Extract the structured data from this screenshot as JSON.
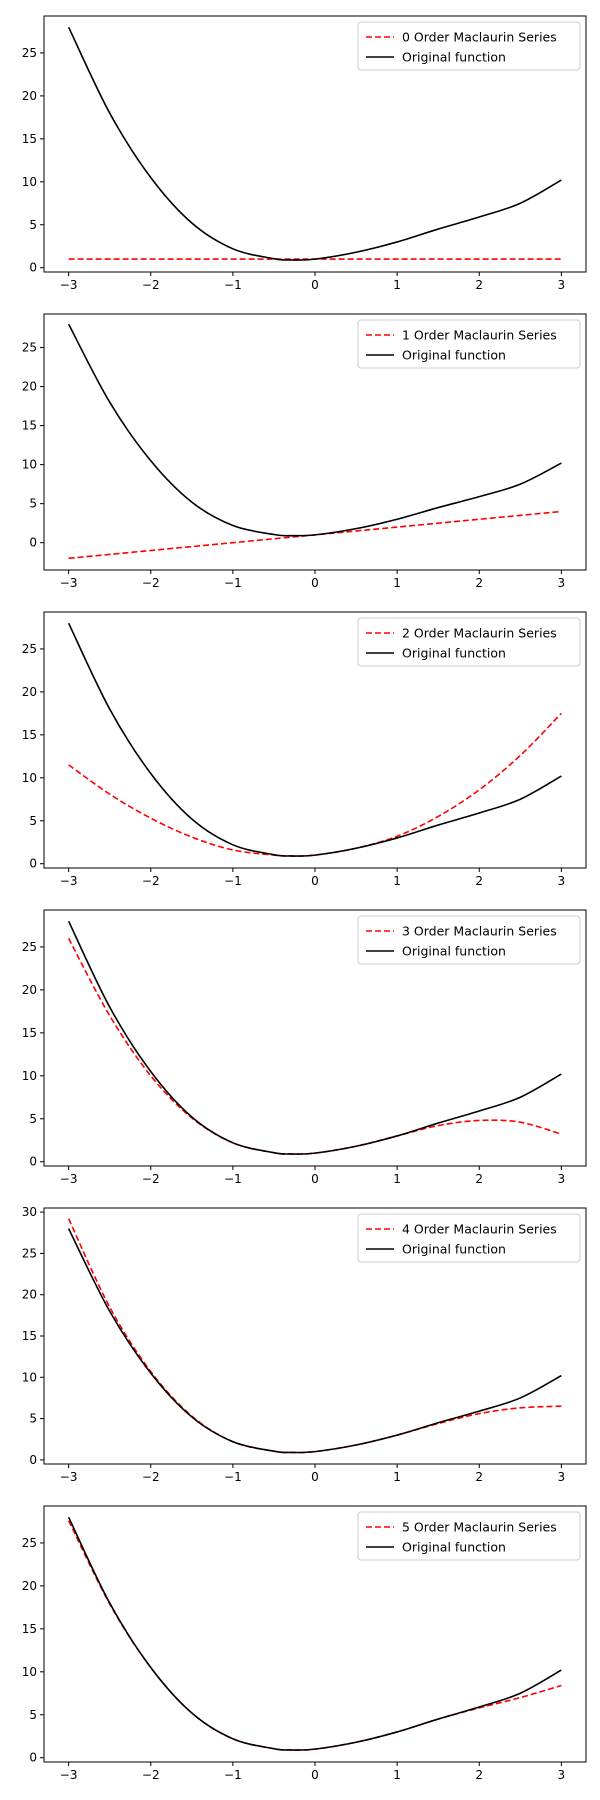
{
  "chart_data": [
    {
      "type": "line",
      "xlim": [
        -3.3,
        3.3
      ],
      "ylim": [
        -0.5,
        29.3
      ],
      "xticks": [
        -3,
        -2,
        -1,
        0,
        1,
        2,
        3
      ],
      "xtick_labels": [
        "−3",
        "−2",
        "−1",
        "0",
        "1",
        "2",
        "3"
      ],
      "yticks": [
        0,
        5,
        10,
        15,
        20,
        25
      ],
      "ytick_labels": [
        "0",
        "5",
        "10",
        "15",
        "20",
        "25"
      ],
      "legend_position": "upper right",
      "series": [
        {
          "name": "0 Order Maclaurin Series",
          "color": "#ff0000",
          "style": "dashed",
          "x": [
            -3,
            3
          ],
          "y": [
            1.0,
            1.0
          ]
        },
        {
          "name": "Original function",
          "color": "#000000",
          "style": "solid",
          "x": [
            -3,
            -2.5,
            -2,
            -1.5,
            -1,
            -0.5,
            -0.3,
            0,
            0.5,
            1,
            1.5,
            2,
            2.5,
            3
          ],
          "y": [
            28.0,
            18.0,
            10.5,
            5.2,
            2.2,
            1.05,
            0.9,
            1.0,
            1.8,
            3.0,
            4.5,
            5.9,
            7.5,
            10.2
          ]
        }
      ]
    },
    {
      "type": "line",
      "xlim": [
        -3.3,
        3.3
      ],
      "ylim": [
        -3.5,
        29.3
      ],
      "xticks": [
        -3,
        -2,
        -1,
        0,
        1,
        2,
        3
      ],
      "xtick_labels": [
        "−3",
        "−2",
        "−1",
        "0",
        "1",
        "2",
        "3"
      ],
      "yticks": [
        0,
        5,
        10,
        15,
        20,
        25
      ],
      "ytick_labels": [
        "0",
        "5",
        "10",
        "15",
        "20",
        "25"
      ],
      "legend_position": "upper right",
      "series": [
        {
          "name": "1 Order Maclaurin Series",
          "color": "#ff0000",
          "style": "dashed",
          "x": [
            -3,
            3
          ],
          "y": [
            -2.0,
            4.0
          ]
        },
        {
          "name": "Original function",
          "color": "#000000",
          "style": "solid",
          "x": [
            -3,
            -2.5,
            -2,
            -1.5,
            -1,
            -0.5,
            -0.3,
            0,
            0.5,
            1,
            1.5,
            2,
            2.5,
            3
          ],
          "y": [
            28.0,
            18.0,
            10.5,
            5.2,
            2.2,
            1.05,
            0.9,
            1.0,
            1.8,
            3.0,
            4.5,
            5.9,
            7.5,
            10.2
          ]
        }
      ]
    },
    {
      "type": "line",
      "xlim": [
        -3.3,
        3.3
      ],
      "ylim": [
        -0.5,
        29.3
      ],
      "xticks": [
        -3,
        -2,
        -1,
        0,
        1,
        2,
        3
      ],
      "xtick_labels": [
        "−3",
        "−2",
        "−1",
        "0",
        "1",
        "2",
        "3"
      ],
      "yticks": [
        0,
        5,
        10,
        15,
        20,
        25
      ],
      "ytick_labels": [
        "0",
        "5",
        "10",
        "15",
        "20",
        "25"
      ],
      "legend_position": "upper right",
      "series": [
        {
          "name": "2 Order Maclaurin Series",
          "color": "#ff0000",
          "style": "dashed",
          "x": [
            -3,
            -2.5,
            -2,
            -1.5,
            -1,
            -0.5,
            -0.3,
            0,
            0.5,
            1,
            1.5,
            2,
            2.5,
            3
          ],
          "y": [
            11.5,
            8.1,
            5.3,
            3.1,
            1.6,
            1.0,
            0.9,
            1.0,
            1.8,
            3.2,
            5.5,
            8.6,
            12.6,
            17.5
          ]
        },
        {
          "name": "Original function",
          "color": "#000000",
          "style": "solid",
          "x": [
            -3,
            -2.5,
            -2,
            -1.5,
            -1,
            -0.5,
            -0.3,
            0,
            0.5,
            1,
            1.5,
            2,
            2.5,
            3
          ],
          "y": [
            28.0,
            18.0,
            10.5,
            5.2,
            2.2,
            1.05,
            0.9,
            1.0,
            1.8,
            3.0,
            4.5,
            5.9,
            7.5,
            10.2
          ]
        }
      ]
    },
    {
      "type": "line",
      "xlim": [
        -3.3,
        3.3
      ],
      "ylim": [
        -0.5,
        29.3
      ],
      "xticks": [
        -3,
        -2,
        -1,
        0,
        1,
        2,
        3
      ],
      "xtick_labels": [
        "−3",
        "−2",
        "−1",
        "0",
        "1",
        "2",
        "3"
      ],
      "yticks": [
        0,
        5,
        10,
        15,
        20,
        25
      ],
      "ytick_labels": [
        "0",
        "5",
        "10",
        "15",
        "20",
        "25"
      ],
      "legend_position": "upper right",
      "series": [
        {
          "name": "3 Order Maclaurin Series",
          "color": "#ff0000",
          "style": "dashed",
          "x": [
            -3,
            -2.5,
            -2,
            -1.5,
            -1,
            -0.5,
            -0.3,
            0,
            0.5,
            1,
            1.5,
            2,
            2.5,
            3
          ],
          "y": [
            26.0,
            17.0,
            10.0,
            5.1,
            2.2,
            1.05,
            0.9,
            1.0,
            1.8,
            3.0,
            4.2,
            4.8,
            4.6,
            3.2
          ]
        },
        {
          "name": "Original function",
          "color": "#000000",
          "style": "solid",
          "x": [
            -3,
            -2.5,
            -2,
            -1.5,
            -1,
            -0.5,
            -0.3,
            0,
            0.5,
            1,
            1.5,
            2,
            2.5,
            3
          ],
          "y": [
            28.0,
            18.0,
            10.5,
            5.2,
            2.2,
            1.05,
            0.9,
            1.0,
            1.8,
            3.0,
            4.5,
            5.9,
            7.5,
            10.2
          ]
        }
      ]
    },
    {
      "type": "line",
      "xlim": [
        -3.3,
        3.3
      ],
      "ylim": [
        -0.5,
        30.5
      ],
      "xticks": [
        -3,
        -2,
        -1,
        0,
        1,
        2,
        3
      ],
      "xtick_labels": [
        "−3",
        "−2",
        "−1",
        "0",
        "1",
        "2",
        "3"
      ],
      "yticks": [
        0,
        5,
        10,
        15,
        20,
        25,
        30
      ],
      "ytick_labels": [
        "0",
        "5",
        "10",
        "15",
        "20",
        "25",
        "30"
      ],
      "legend_position": "upper right",
      "series": [
        {
          "name": "4 Order Maclaurin Series",
          "color": "#ff0000",
          "style": "dashed",
          "x": [
            -3,
            -2.5,
            -2,
            -1.5,
            -1,
            -0.5,
            -0.3,
            0,
            0.5,
            1,
            1.5,
            2,
            2.5,
            3
          ],
          "y": [
            29.2,
            18.5,
            10.7,
            5.3,
            2.2,
            1.05,
            0.9,
            1.0,
            1.8,
            3.0,
            4.4,
            5.6,
            6.3,
            6.5
          ]
        },
        {
          "name": "Original function",
          "color": "#000000",
          "style": "solid",
          "x": [
            -3,
            -2.5,
            -2,
            -1.5,
            -1,
            -0.5,
            -0.3,
            0,
            0.5,
            1,
            1.5,
            2,
            2.5,
            3
          ],
          "y": [
            28.0,
            18.0,
            10.5,
            5.2,
            2.2,
            1.05,
            0.9,
            1.0,
            1.8,
            3.0,
            4.5,
            5.9,
            7.5,
            10.2
          ]
        }
      ]
    },
    {
      "type": "line",
      "xlim": [
        -3.3,
        3.3
      ],
      "ylim": [
        -0.5,
        29.3
      ],
      "xticks": [
        -3,
        -2,
        -1,
        0,
        1,
        2,
        3
      ],
      "xtick_labels": [
        "−3",
        "−2",
        "−1",
        "0",
        "1",
        "2",
        "3"
      ],
      "yticks": [
        0,
        5,
        10,
        15,
        20,
        25
      ],
      "ytick_labels": [
        "0",
        "5",
        "10",
        "15",
        "20",
        "25"
      ],
      "legend_position": "upper right",
      "series": [
        {
          "name": "5 Order Maclaurin Series",
          "color": "#ff0000",
          "style": "dashed",
          "x": [
            -3,
            -2.5,
            -2,
            -1.5,
            -1,
            -0.5,
            -0.3,
            0,
            0.5,
            1,
            1.5,
            2,
            2.5,
            3
          ],
          "y": [
            27.6,
            17.9,
            10.5,
            5.2,
            2.2,
            1.05,
            0.9,
            1.0,
            1.8,
            3.0,
            4.5,
            5.8,
            7.0,
            8.4
          ]
        },
        {
          "name": "Original function",
          "color": "#000000",
          "style": "solid",
          "x": [
            -3,
            -2.5,
            -2,
            -1.5,
            -1,
            -0.5,
            -0.3,
            0,
            0.5,
            1,
            1.5,
            2,
            2.5,
            3
          ],
          "y": [
            28.0,
            18.0,
            10.5,
            5.2,
            2.2,
            1.05,
            0.9,
            1.0,
            1.8,
            3.0,
            4.5,
            5.9,
            7.5,
            10.2
          ]
        }
      ]
    }
  ]
}
